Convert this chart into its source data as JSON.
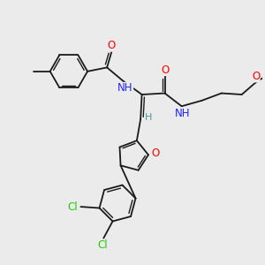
{
  "background_color": "#ebebeb",
  "bond_color": "#1a1a1a",
  "atom_colors": {
    "O": "#ff0000",
    "N": "#2222ff",
    "Cl": "#22cc00",
    "C": "#1a1a1a",
    "H": "#4d9999"
  },
  "font_size": 8.5,
  "figsize": [
    3.0,
    3.0
  ],
  "dpi": 100
}
